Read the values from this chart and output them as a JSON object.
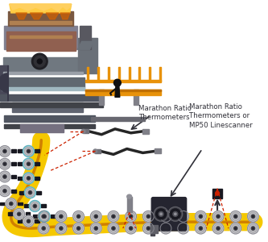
{
  "bg_color": "#ffffff",
  "label1": "Marathon Ratio\nThermometers",
  "label2": "Marathon Ratio\nThermometers or\nMP50 Linescanner",
  "colors": {
    "furnace_body1": "#6a6870",
    "furnace_body2": "#888090",
    "furnace_dark": "#3a3840",
    "furnace_brown": "#8a6050",
    "furnace_copper": "#b07840",
    "furnace_base": "#555060",
    "furnace_base2": "#444048",
    "orange_platform": "#e8920a",
    "platform_leg": "#888088",
    "molten_top": "#ffeeaa",
    "molten_yellow": "#ffcc00",
    "molten_orange": "#e87800",
    "strand_yellow": "#f5c800",
    "strand_orange": "#d08000",
    "roller_rim": "#c8c8cc",
    "roller_mid": "#a0a0a4",
    "roller_hub": "#606064",
    "roller_center": "#282830",
    "roller_edge": "#707074",
    "thermometer_cable": "#303030",
    "thermometer_head": "#505058",
    "thermometer_conn": "#909098",
    "red_dashed": "#cc2200",
    "arrow_color": "#404040",
    "person_color": "#101010",
    "scanner_body": "#282830",
    "scanner_lens_ring": "#505058",
    "scanner_lens": "#202028",
    "scanner_tube": "#606068",
    "sensor_body": "#505058",
    "cyan_glow": "#60d0e0",
    "furnace_highlight": "#a0b0c0"
  }
}
